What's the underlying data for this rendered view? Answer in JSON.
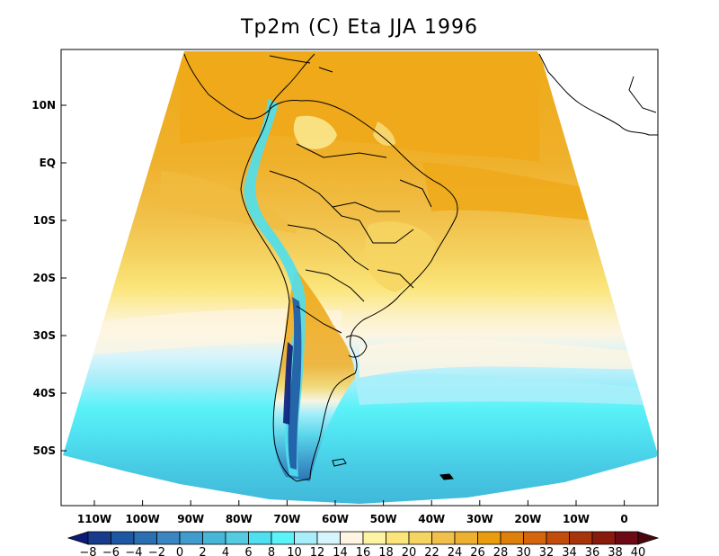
{
  "title": "Tp2m (C) Eta JJA 1996",
  "lat_labels": [
    "10N",
    "EQ",
    "10S",
    "20S",
    "30S",
    "40S",
    "50S"
  ],
  "lon_labels": [
    "110W",
    "100W",
    "90W",
    "80W",
    "70W",
    "60W",
    "50W",
    "40W",
    "30W",
    "20W",
    "10W",
    "0"
  ],
  "colorbar": {
    "labels": [
      "−8",
      "−6",
      "−4",
      "−2",
      "0",
      "2",
      "4",
      "6",
      "8",
      "10",
      "12",
      "14",
      "16",
      "18",
      "20",
      "22",
      "24",
      "26",
      "28",
      "30",
      "32",
      "34",
      "36",
      "38",
      "40"
    ],
    "colors": [
      "#0a1c78",
      "#183c8c",
      "#1f58a2",
      "#2a6fb2",
      "#3a86c2",
      "#3f9ccc",
      "#48b6d6",
      "#54cbe0",
      "#4edff0",
      "#5bf2f8",
      "#a8eefa",
      "#d6f4fb",
      "#fdf5e2",
      "#fcf3a4",
      "#fbe57a",
      "#f6d462",
      "#f0c04b",
      "#eeb030",
      "#e89c0e",
      "#e0800c",
      "#d4650c",
      "#c24c0c",
      "#a8340c",
      "#8a1a0c",
      "#6e0a14",
      "#4a0610"
    ]
  },
  "colors": {
    "ocean_warm": "#f1c04e",
    "ocean_hot": "#eeac1c",
    "land_coast_line": "#000000"
  }
}
